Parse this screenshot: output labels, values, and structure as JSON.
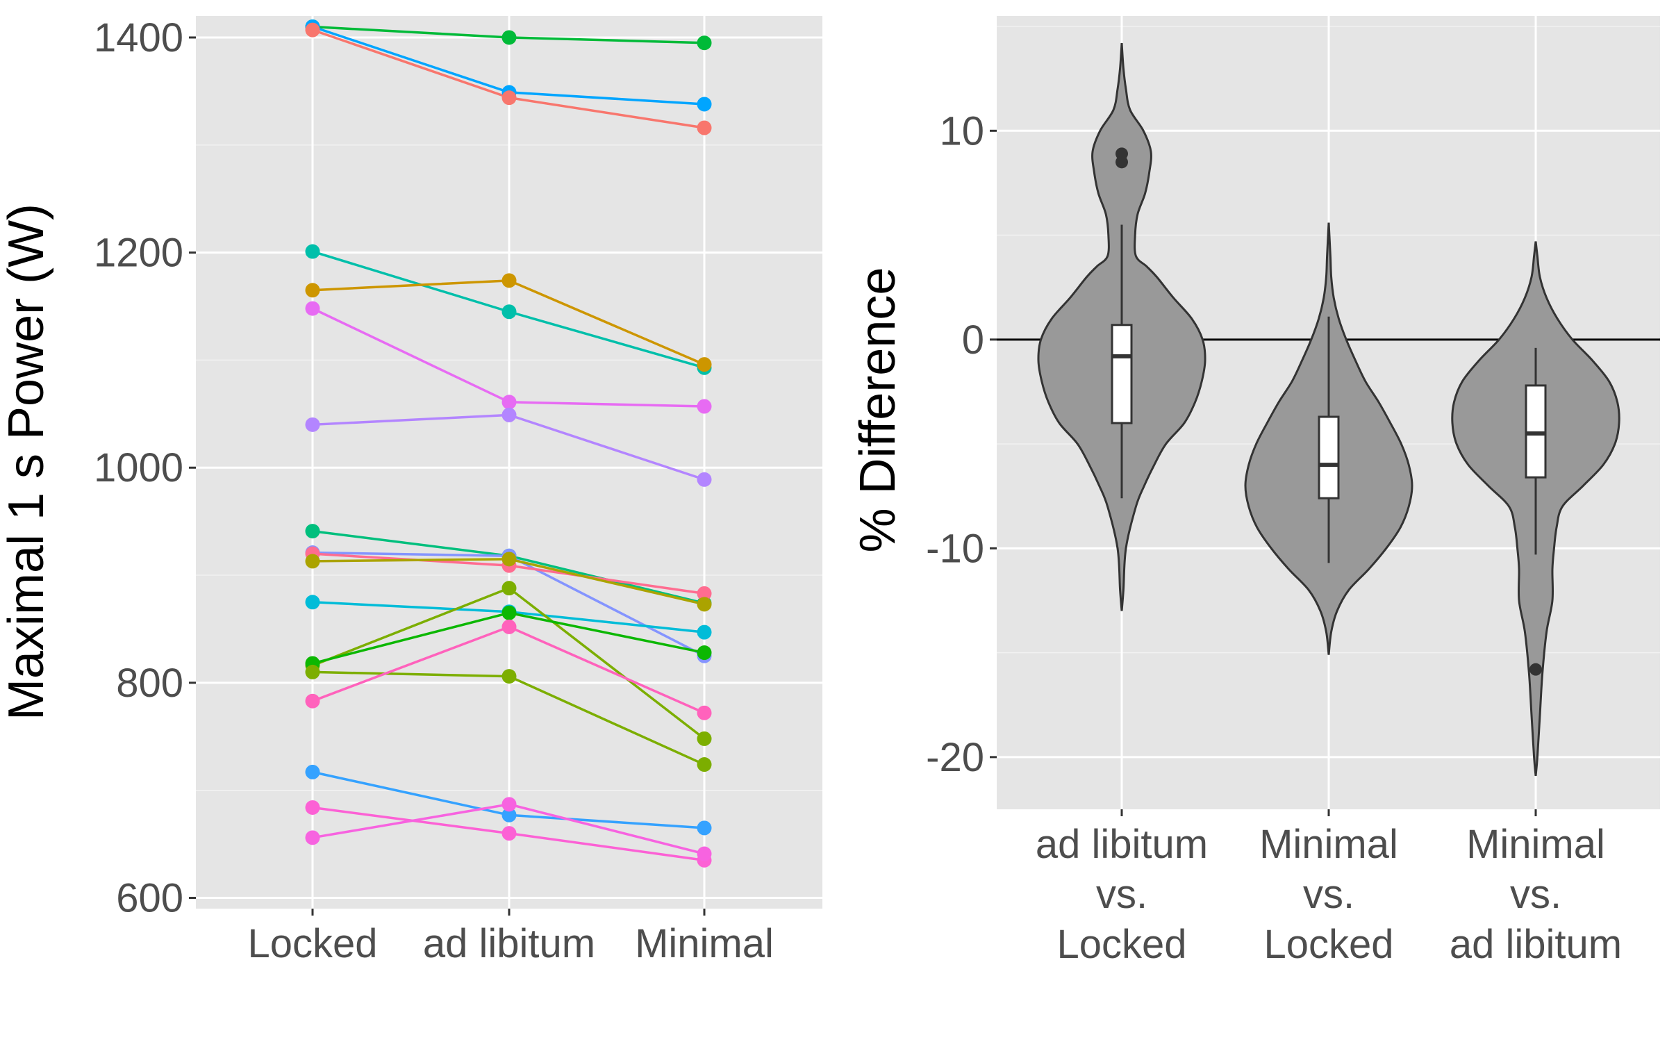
{
  "chart_data": [
    {
      "type": "line",
      "title": "",
      "xlabel": "",
      "ylabel": "Maximal 1 s Power (W)",
      "categories": [
        "Locked",
        "ad libitum",
        "Minimal"
      ],
      "ylim": [
        590,
        1420
      ],
      "yticks": [
        600,
        800,
        1000,
        1200,
        1400
      ],
      "grid": true,
      "legend": "none",
      "series": [
        {
          "color": "#00BA38",
          "values": [
            1410,
            1400,
            1395
          ]
        },
        {
          "color": "#00A5FF",
          "values": [
            1410,
            1349,
            1338
          ]
        },
        {
          "color": "#F8766D",
          "values": [
            1407,
            1344,
            1316
          ]
        },
        {
          "color": "#00BFAA",
          "values": [
            1201,
            1145,
            1093
          ]
        },
        {
          "color": "#CD9600",
          "values": [
            1165,
            1174,
            1096
          ]
        },
        {
          "color": "#E76BF3",
          "values": [
            1148,
            1061,
            1057
          ]
        },
        {
          "color": "#B385FF",
          "values": [
            1040,
            1049,
            989
          ]
        },
        {
          "color": "#00BF7D",
          "values": [
            941,
            918,
            874
          ]
        },
        {
          "color": "#8494FF",
          "values": [
            921,
            918,
            825
          ]
        },
        {
          "color": "#FF6C90",
          "values": [
            920,
            909,
            883
          ]
        },
        {
          "color": "#ABA300",
          "values": [
            913,
            915,
            873
          ]
        },
        {
          "color": "#00BCD8",
          "values": [
            875,
            866,
            847
          ]
        },
        {
          "color": "#7CAE00",
          "values": [
            816,
            888,
            748
          ]
        },
        {
          "color": "#0CB702",
          "values": [
            818,
            865,
            828
          ]
        },
        {
          "color": "#7CAE00",
          "values": [
            810,
            806,
            724
          ]
        },
        {
          "color": "#FF62BC",
          "values": [
            783,
            852,
            772
          ]
        },
        {
          "color": "#35A2FF",
          "values": [
            717,
            677,
            665
          ]
        },
        {
          "color": "#FC61D5",
          "values": [
            684,
            660,
            635
          ]
        },
        {
          "color": "#F763E0",
          "values": [
            656,
            687,
            641
          ]
        }
      ]
    },
    {
      "type": "violin",
      "title": "",
      "xlabel": "",
      "ylabel": "% Difference",
      "categories": [
        "ad libitum\nvs.\nLocked",
        "Minimal\nvs.\nLocked",
        "Minimal\nvs.\nad libitum"
      ],
      "category_lines": [
        [
          "ad libitum",
          "vs.",
          "Locked"
        ],
        [
          "Minimal",
          "vs.",
          "Locked"
        ],
        [
          "Minimal",
          "vs.",
          "ad libitum"
        ]
      ],
      "ylim": [
        -22.5,
        15.5
      ],
      "yticks": [
        10,
        0,
        -10,
        -20
      ],
      "reference_line": 0,
      "fill": "#999999",
      "grid": true,
      "legend": "none",
      "groups": [
        {
          "box": {
            "q1": -4.0,
            "median": -0.8,
            "q3": 0.7,
            "whisker_low": -7.6,
            "whisker_high": 5.5
          },
          "outliers": [
            8.9,
            8.5
          ],
          "density": [
            [
              -13.0,
              0.0
            ],
            [
              -12.0,
              0.02
            ],
            [
              -10.0,
              0.05
            ],
            [
              -8.0,
              0.17
            ],
            [
              -7.0,
              0.27
            ],
            [
              -6.0,
              0.39
            ],
            [
              -5.0,
              0.53
            ],
            [
              -4.0,
              0.75
            ],
            [
              -3.0,
              0.88
            ],
            [
              -2.0,
              0.96
            ],
            [
              -1.0,
              1.0
            ],
            [
              0.0,
              0.97
            ],
            [
              1.0,
              0.84
            ],
            [
              2.0,
              0.62
            ],
            [
              3.0,
              0.42
            ],
            [
              3.5,
              0.3
            ],
            [
              4.0,
              0.17
            ],
            [
              5.0,
              0.16
            ],
            [
              6.0,
              0.19
            ],
            [
              7.0,
              0.28
            ],
            [
              8.0,
              0.33
            ],
            [
              9.0,
              0.35
            ],
            [
              10.0,
              0.26
            ],
            [
              11.0,
              0.1
            ],
            [
              12.0,
              0.05
            ],
            [
              13.0,
              0.02
            ],
            [
              14.2,
              0.0
            ]
          ]
        },
        {
          "box": {
            "q1": -7.6,
            "median": -6.0,
            "q3": -3.7,
            "whisker_low": -10.7,
            "whisker_high": 1.1
          },
          "outliers": [],
          "density": [
            [
              -15.1,
              0.0
            ],
            [
              -14.0,
              0.03
            ],
            [
              -13.0,
              0.1
            ],
            [
              -12.0,
              0.24
            ],
            [
              -11.0,
              0.48
            ],
            [
              -10.0,
              0.69
            ],
            [
              -9.0,
              0.86
            ],
            [
              -8.0,
              0.96
            ],
            [
              -7.0,
              1.0
            ],
            [
              -6.0,
              0.96
            ],
            [
              -5.0,
              0.87
            ],
            [
              -4.0,
              0.74
            ],
            [
              -3.0,
              0.6
            ],
            [
              -2.0,
              0.44
            ],
            [
              -1.0,
              0.32
            ],
            [
              0.0,
              0.21
            ],
            [
              1.0,
              0.12
            ],
            [
              2.0,
              0.06
            ],
            [
              3.0,
              0.03
            ],
            [
              4.0,
              0.02
            ],
            [
              5.6,
              0.0
            ]
          ]
        },
        {
          "box": {
            "q1": -6.6,
            "median": -4.5,
            "q3": -2.2,
            "whisker_low": -10.3,
            "whisker_high": -0.4
          },
          "outliers": [
            -15.8
          ],
          "density": [
            [
              -20.9,
              0.0
            ],
            [
              -20.0,
              0.02
            ],
            [
              -18.0,
              0.05
            ],
            [
              -16.0,
              0.08
            ],
            [
              -14.0,
              0.13
            ],
            [
              -12.5,
              0.2
            ],
            [
              -11.0,
              0.2
            ],
            [
              -10.0,
              0.22
            ],
            [
              -9.0,
              0.25
            ],
            [
              -8.0,
              0.32
            ],
            [
              -7.0,
              0.57
            ],
            [
              -6.0,
              0.81
            ],
            [
              -5.0,
              0.95
            ],
            [
              -4.0,
              1.0
            ],
            [
              -3.0,
              0.98
            ],
            [
              -2.0,
              0.88
            ],
            [
              -1.0,
              0.68
            ],
            [
              0.0,
              0.44
            ],
            [
              1.0,
              0.26
            ],
            [
              2.0,
              0.13
            ],
            [
              3.0,
              0.05
            ],
            [
              4.0,
              0.02
            ],
            [
              4.7,
              0.0
            ]
          ]
        }
      ]
    }
  ]
}
